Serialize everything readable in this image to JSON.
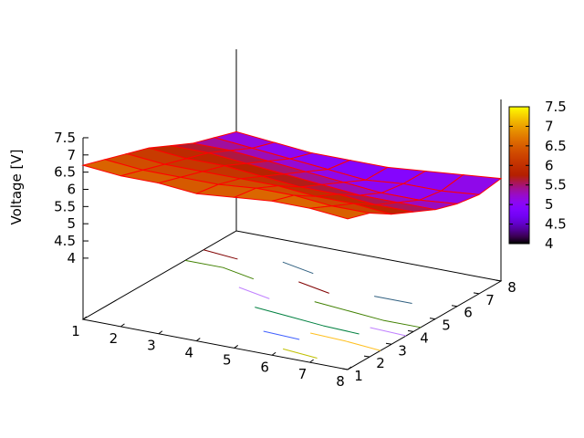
{
  "chart_data": {
    "type": "surface3d",
    "zlabel": "Voltage [V]",
    "x_ticks": [
      "1",
      "2",
      "3",
      "4",
      "5",
      "6",
      "7",
      "8"
    ],
    "y_ticks": [
      "1",
      "2",
      "3",
      "4",
      "5",
      "6",
      "7",
      "8"
    ],
    "z_ticks": [
      "4",
      "4.5",
      "5",
      "5.5",
      "6",
      "6.5",
      "7",
      "7.5"
    ],
    "colorbar_ticks": [
      "4",
      "4.5",
      "5",
      "5.5",
      "6",
      "6.5",
      "7",
      "7.5"
    ],
    "xlim": [
      1,
      8
    ],
    "ylim": [
      1,
      8
    ],
    "zlim": [
      4,
      7.5
    ],
    "cblim": [
      4,
      7.5
    ],
    "x": [
      1,
      2,
      3,
      4,
      5,
      6,
      7,
      8
    ],
    "y": [
      1,
      2,
      3,
      4,
      5,
      6,
      7,
      8
    ],
    "z_by_y_rows": [
      [
        6.7,
        6.6,
        6.6,
        6.5,
        6.6,
        6.7,
        6.7,
        6.6
      ],
      [
        6.5,
        6.4,
        6.4,
        6.4,
        6.5,
        6.5,
        6.4,
        6.4
      ],
      [
        6.3,
        6.2,
        6.2,
        6.2,
        6.2,
        6.1,
        6.1,
        6.0
      ],
      [
        6.1,
        6.0,
        6.0,
        5.9,
        5.8,
        5.8,
        5.7,
        5.7
      ],
      [
        5.8,
        5.8,
        5.7,
        5.6,
        5.5,
        5.4,
        5.4,
        5.4
      ],
      [
        5.5,
        5.5,
        5.4,
        5.3,
        5.2,
        5.1,
        5.1,
        5.2
      ],
      [
        5.3,
        5.2,
        5.1,
        5.0,
        4.9,
        5.0,
        5.0,
        5.1
      ],
      [
        5.1,
        5.0,
        4.9,
        4.9,
        4.9,
        5.0,
        5.1,
        5.2
      ]
    ],
    "contour_levels": [
      5.0,
      5.2,
      5.4,
      5.6,
      5.8,
      6.0,
      6.2,
      6.4,
      6.6
    ],
    "mesh_color": "#ff0000",
    "palette": "gnuplot rgbformulae 7,5,15",
    "contour_colors": [
      "#ff80ff",
      "#306080",
      "#800000",
      "#408000",
      "#c080ff",
      "#008040",
      "#ffc020",
      "#4060ff",
      "#c0c000",
      "#c04000",
      "#00ffff",
      "#c000ff",
      "#0080ff",
      "#00c000"
    ]
  }
}
